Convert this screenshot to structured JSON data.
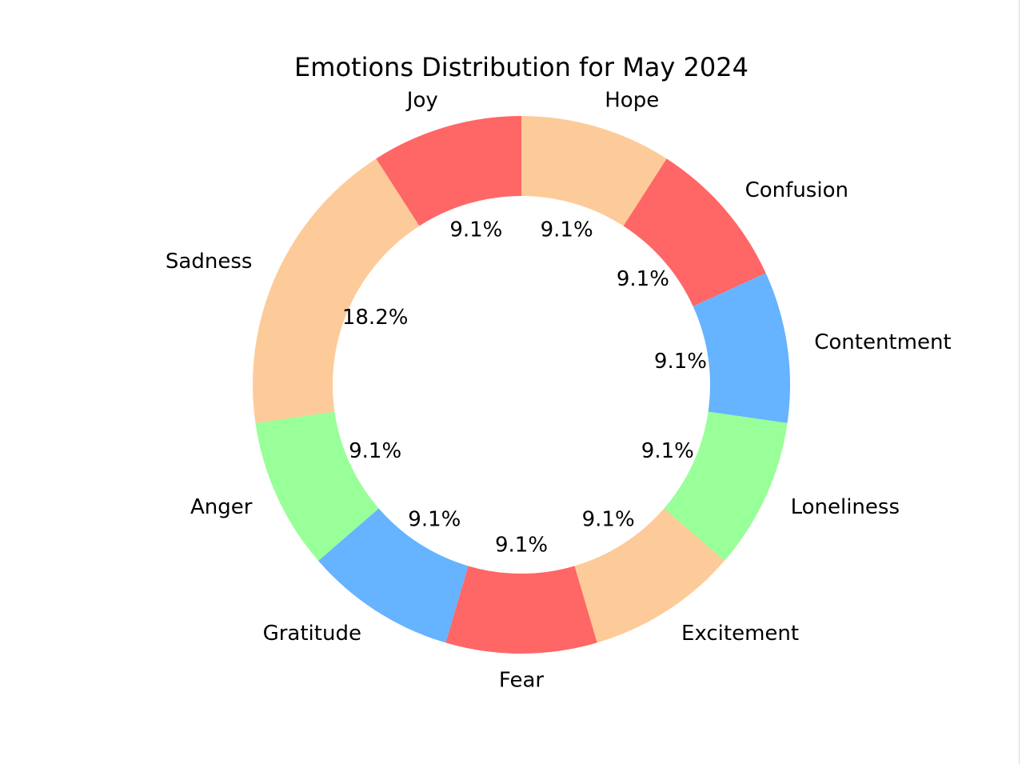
{
  "chart_data": {
    "type": "pie",
    "variant": "donut",
    "title": "Emotions Distribution for May 2024",
    "labels": [
      "Hope",
      "Confusion",
      "Contentment",
      "Loneliness",
      "Excitement",
      "Fear",
      "Gratitude",
      "Anger",
      "Sadness",
      "Joy"
    ],
    "values": [
      1,
      1,
      1,
      1,
      1,
      1,
      1,
      1,
      2,
      1
    ],
    "percent_labels": [
      "9.1%",
      "9.1%",
      "9.1%",
      "9.1%",
      "9.1%",
      "9.1%",
      "9.1%",
      "9.1%",
      "18.2%",
      "9.1%"
    ],
    "colors": [
      "#FDCB99",
      "#FF6666",
      "#66B3FF",
      "#99FF99",
      "#FDCB99",
      "#FF6666",
      "#66B3FF",
      "#99FF99",
      "#FDCB99",
      "#FF6666"
    ],
    "start_angle_deg": 90,
    "direction": "clockwise",
    "legend": "none"
  }
}
